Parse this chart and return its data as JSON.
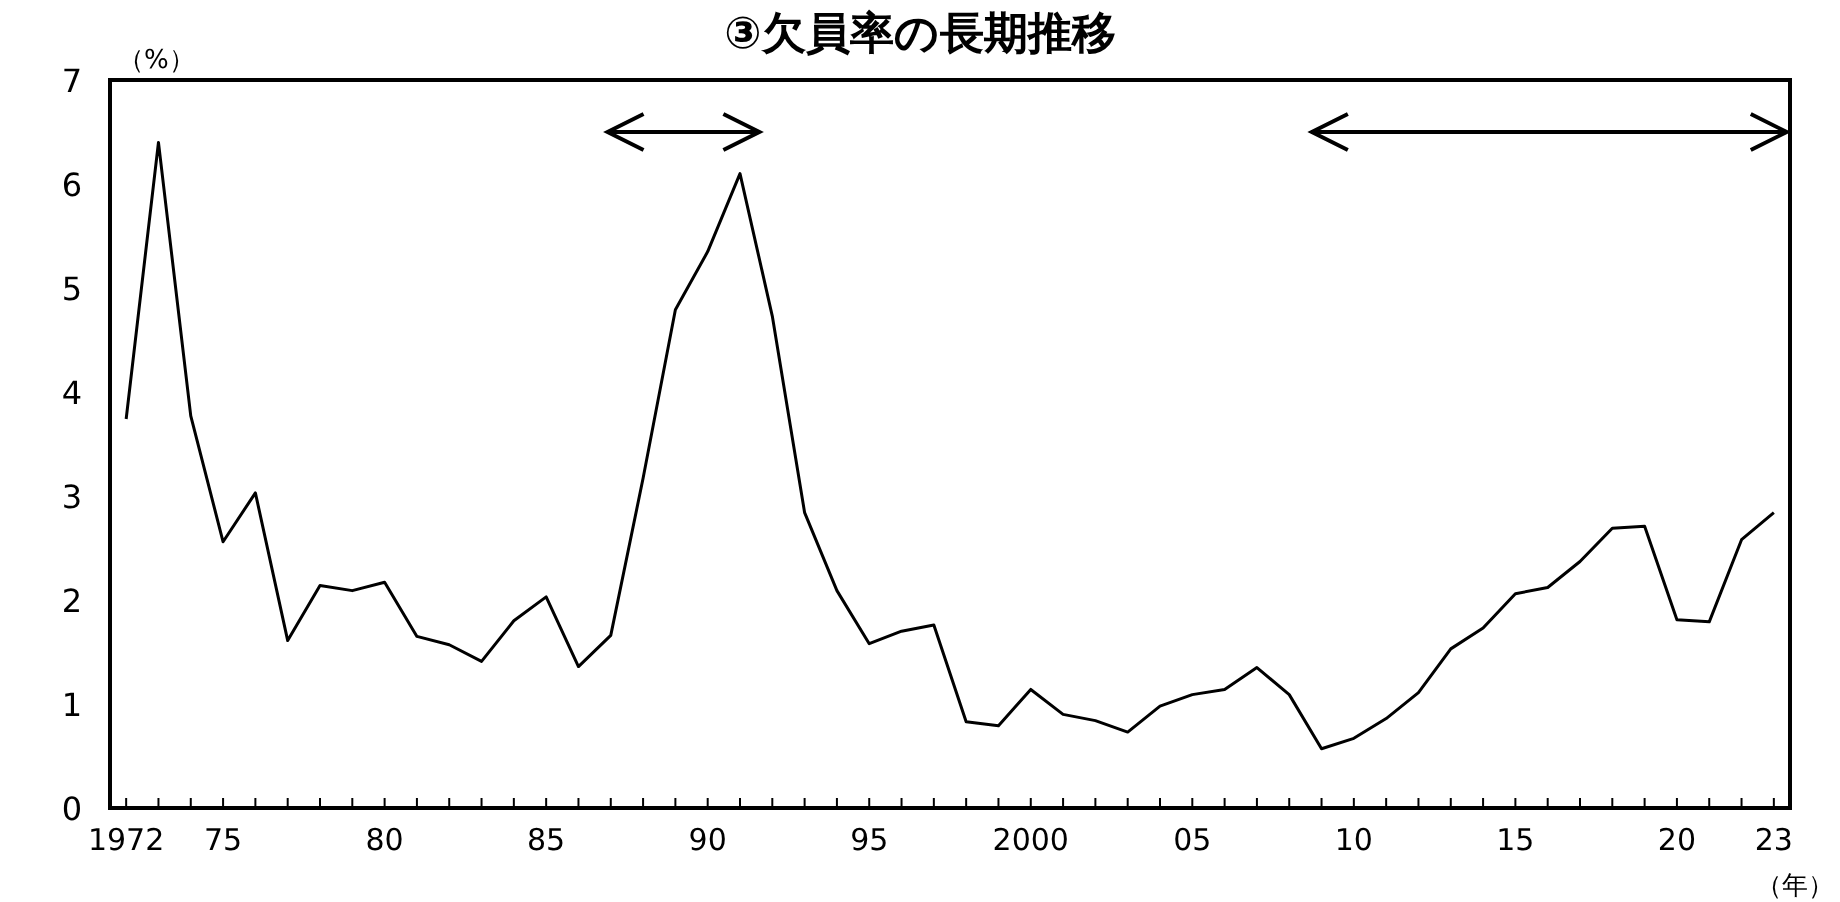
{
  "chart_data": {
    "type": "line",
    "title": "③欠員率の長期推移",
    "ylabel": "（%）",
    "xlabel": "（年）",
    "x": [
      1972,
      1973,
      1974,
      1975,
      1976,
      1977,
      1978,
      1979,
      1980,
      1981,
      1982,
      1983,
      1984,
      1985,
      1986,
      1987,
      1988,
      1989,
      1990,
      1991,
      1992,
      1993,
      1994,
      1995,
      1996,
      1997,
      1998,
      1999,
      2000,
      2001,
      2002,
      2003,
      2004,
      2005,
      2006,
      2007,
      2008,
      2009,
      2010,
      2011,
      2012,
      2013,
      2014,
      2015,
      2016,
      2017,
      2018,
      2019,
      2020,
      2021,
      2022,
      2023
    ],
    "series": [
      {
        "color": "#000000",
        "values": [
          3.74,
          6.4,
          3.77,
          2.56,
          3.03,
          1.61,
          2.14,
          2.09,
          2.17,
          1.65,
          1.57,
          1.41,
          1.8,
          2.03,
          1.36,
          1.66,
          3.17,
          4.79,
          5.35,
          6.1,
          4.73,
          2.84,
          2.09,
          1.58,
          1.7,
          1.76,
          0.83,
          0.79,
          1.14,
          0.9,
          0.84,
          0.73,
          0.98,
          1.09,
          1.14,
          1.35,
          1.09,
          0.57,
          0.67,
          0.86,
          1.11,
          1.53,
          1.73,
          2.06,
          2.12,
          2.37,
          2.69,
          2.71,
          1.81,
          1.79,
          2.58,
          2.84
        ]
      }
    ],
    "xlim": [
      1971.5,
      2023.5
    ],
    "xticks": [
      {
        "value": 1972,
        "label": "1972"
      },
      {
        "value": 1973,
        "label": null
      },
      {
        "value": 1974,
        "label": null
      },
      {
        "value": 1975,
        "label": "75"
      },
      {
        "value": 1976,
        "label": null
      },
      {
        "value": 1977,
        "label": null
      },
      {
        "value": 1978,
        "label": null
      },
      {
        "value": 1979,
        "label": null
      },
      {
        "value": 1980,
        "label": "80"
      },
      {
        "value": 1981,
        "label": null
      },
      {
        "value": 1982,
        "label": null
      },
      {
        "value": 1983,
        "label": null
      },
      {
        "value": 1984,
        "label": null
      },
      {
        "value": 1985,
        "label": "85"
      },
      {
        "value": 1986,
        "label": null
      },
      {
        "value": 1987,
        "label": null
      },
      {
        "value": 1988,
        "label": null
      },
      {
        "value": 1989,
        "label": null
      },
      {
        "value": 1990,
        "label": "90"
      },
      {
        "value": 1991,
        "label": null
      },
      {
        "value": 1992,
        "label": null
      },
      {
        "value": 1993,
        "label": null
      },
      {
        "value": 1994,
        "label": null
      },
      {
        "value": 1995,
        "label": "95"
      },
      {
        "value": 1996,
        "label": null
      },
      {
        "value": 1997,
        "label": null
      },
      {
        "value": 1998,
        "label": null
      },
      {
        "value": 1999,
        "label": null
      },
      {
        "value": 2000,
        "label": "2000"
      },
      {
        "value": 2001,
        "label": null
      },
      {
        "value": 2002,
        "label": null
      },
      {
        "value": 2003,
        "label": null
      },
      {
        "value": 2004,
        "label": null
      },
      {
        "value": 2005,
        "label": "05"
      },
      {
        "value": 2006,
        "label": null
      },
      {
        "value": 2007,
        "label": null
      },
      {
        "value": 2008,
        "label": null
      },
      {
        "value": 2009,
        "label": null
      },
      {
        "value": 2010,
        "label": "10"
      },
      {
        "value": 2011,
        "label": null
      },
      {
        "value": 2012,
        "label": null
      },
      {
        "value": 2013,
        "label": null
      },
      {
        "value": 2014,
        "label": null
      },
      {
        "value": 2015,
        "label": "15"
      },
      {
        "value": 2016,
        "label": null
      },
      {
        "value": 2017,
        "label": null
      },
      {
        "value": 2018,
        "label": null
      },
      {
        "value": 2019,
        "label": null
      },
      {
        "value": 2020,
        "label": "20"
      },
      {
        "value": 2021,
        "label": null
      },
      {
        "value": 2022,
        "label": null
      },
      {
        "value": 2023,
        "label": "23"
      }
    ],
    "ylim": [
      0,
      7
    ],
    "yticks": [
      0,
      1,
      2,
      3,
      4,
      5,
      6,
      7
    ],
    "grid": false,
    "marker": "none",
    "line_style": "solid"
  }
}
